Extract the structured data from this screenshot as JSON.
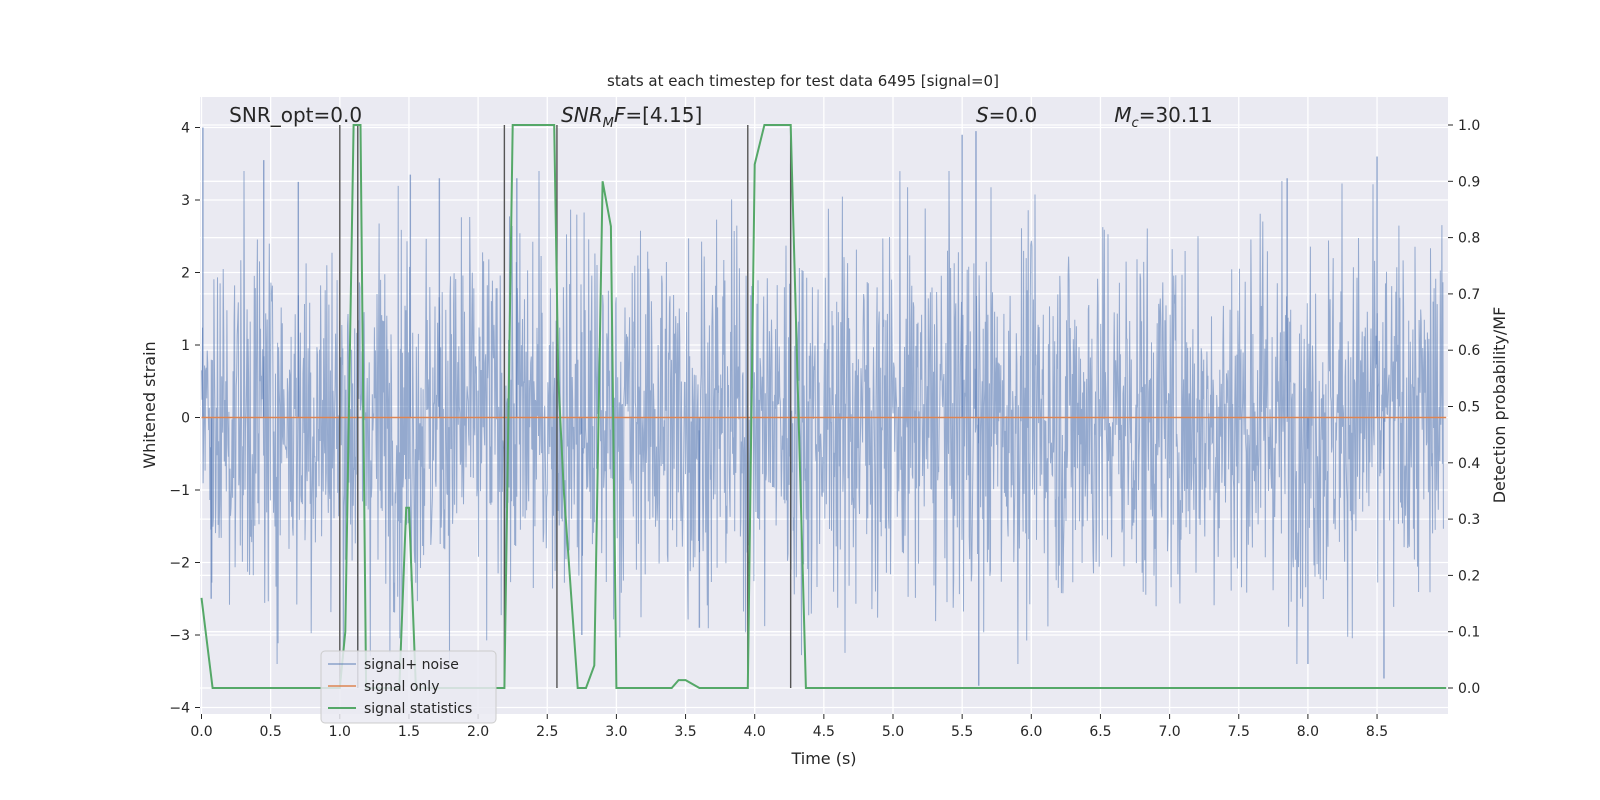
{
  "chart_data": {
    "type": "line",
    "title": "stats at each timestep for test data 6495 [signal=0]",
    "xlabel": "Time (s)",
    "ylabel_left": "Whitened strain",
    "ylabel_right": "Detection probability/MF",
    "xlim": [
      0.0,
      9.0
    ],
    "ylim_left": [
      -4.2,
      4.4
    ],
    "ylim_right": [
      -0.045,
      1.045
    ],
    "x_ticks": [
      "0.0",
      "0.5",
      "1.0",
      "1.5",
      "2.0",
      "2.5",
      "3.0",
      "3.5",
      "4.0",
      "4.5",
      "5.0",
      "5.5",
      "6.0",
      "6.5",
      "7.0",
      "7.5",
      "8.0",
      "8.5"
    ],
    "y_ticks_left": [
      "4",
      "3",
      "2",
      "1",
      "0",
      "−1",
      "−2",
      "−3",
      "−4"
    ],
    "y_ticks_right": [
      "1.0",
      "0.9",
      "0.8",
      "0.7",
      "0.6",
      "0.5",
      "0.4",
      "0.3",
      "0.2",
      "0.1",
      "0.0"
    ],
    "grid": true,
    "legend_position": "lower-left",
    "annotations": [
      {
        "label": "SNR_opt=0.0",
        "x": 0.2
      },
      {
        "label": "SNR_MF=[4.15]",
        "x": 2.6
      },
      {
        "label": "S=0.0",
        "x": 5.6
      },
      {
        "label": "M_c=30.11",
        "x": 6.6
      }
    ],
    "vertical_markers": [
      1.0,
      1.13,
      2.19,
      2.57,
      3.95,
      4.26
    ],
    "series": [
      {
        "name": "signal+ noise",
        "color": "#4c72b0",
        "description": "whitened noise, dense fill roughly ±1.6 with spikes up to ±4",
        "amplitude": 1.5,
        "peaks_max": [
          {
            "x": 0.01,
            "y": 4.0
          },
          {
            "x": 0.45,
            "y": 3.55
          },
          {
            "x": 0.7,
            "y": 3.25
          },
          {
            "x": 1.51,
            "y": 3.35
          },
          {
            "x": 1.72,
            "y": 3.3
          },
          {
            "x": 2.28,
            "y": 3.3
          },
          {
            "x": 4.26,
            "y": 3.5
          },
          {
            "x": 5.5,
            "y": 3.9
          },
          {
            "x": 5.6,
            "y": 3.95
          },
          {
            "x": 7.85,
            "y": 3.3
          },
          {
            "x": 8.5,
            "y": 3.6
          }
        ],
        "peaks_min": [
          {
            "x": 0.07,
            "y": -2.5
          },
          {
            "x": 1.13,
            "y": -3.7
          },
          {
            "x": 2.75,
            "y": -3.0
          },
          {
            "x": 3.6,
            "y": -2.9
          },
          {
            "x": 5.62,
            "y": -3.7
          },
          {
            "x": 8.0,
            "y": -3.4
          },
          {
            "x": 8.55,
            "y": -3.6
          }
        ]
      },
      {
        "name": "signal only",
        "color": "#dd8452",
        "x": [
          0.0,
          9.0
        ],
        "y": [
          0.0,
          0.0
        ]
      },
      {
        "name": "signal statistics",
        "color": "#55a868",
        "axis": "right",
        "x": [
          0.0,
          0.08,
          0.15,
          0.95,
          1.0,
          1.04,
          1.1,
          1.15,
          1.19,
          1.3,
          1.43,
          1.48,
          1.5,
          1.55,
          2.15,
          2.19,
          2.25,
          2.55,
          2.58,
          2.62,
          2.72,
          2.78,
          2.84,
          2.9,
          2.96,
          3.0,
          3.1,
          3.4,
          3.45,
          3.5,
          3.6,
          3.9,
          3.95,
          4.0,
          4.07,
          4.2,
          4.26,
          4.37,
          4.45,
          9.0
        ],
        "y": [
          0.16,
          0.0,
          0.0,
          0.0,
          0.0,
          0.1,
          1.0,
          1.0,
          0.0,
          0.0,
          0.0,
          0.32,
          0.32,
          0.0,
          0.0,
          0.0,
          1.0,
          1.0,
          0.55,
          0.35,
          0.0,
          0.0,
          0.04,
          0.9,
          0.82,
          0.0,
          0.0,
          0.0,
          0.014,
          0.014,
          0.0,
          0.0,
          0.0,
          0.93,
          1.0,
          1.0,
          1.0,
          0.0,
          0.0,
          0.0
        ]
      }
    ]
  }
}
